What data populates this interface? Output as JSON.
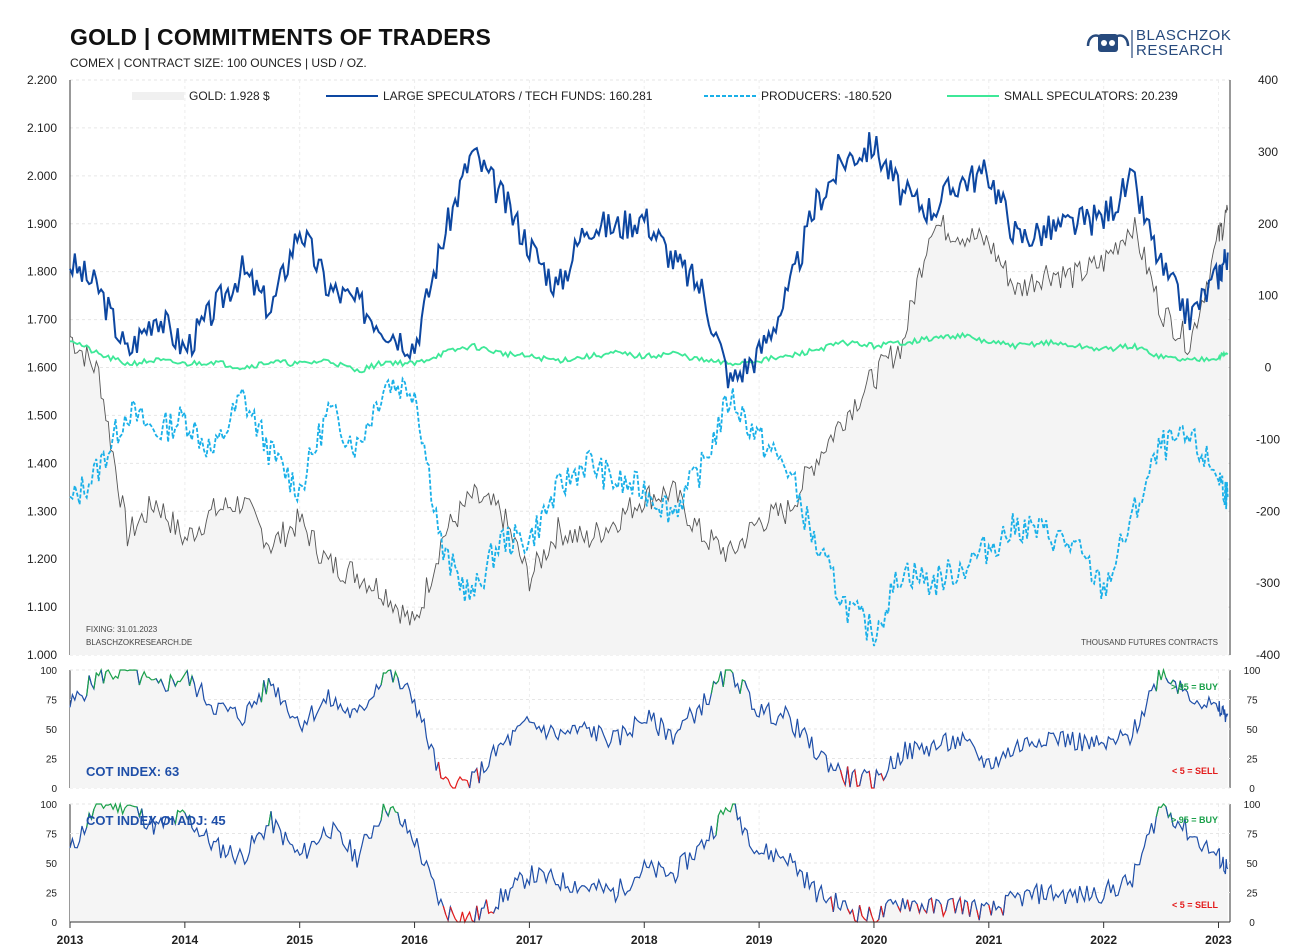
{
  "header": {
    "title": "GOLD | COMMITMENTS OF TRADERS",
    "subtitle": "COMEX | CONTRACT SIZE: 100 OUNCES | USD / OZ.",
    "logo_line1": "BLASCHZOK",
    "logo_line2": "RESEARCH"
  },
  "colors": {
    "gold": "#555555",
    "gold_fill": "#f4f4f4",
    "large_specs": "#0d47a1",
    "producers": "#1ab0e8",
    "small_specs": "#3ee898",
    "index_line": "#1f4fa8",
    "buy": "#1aa04a",
    "sell": "#e31b1b"
  },
  "chart_data": [
    {
      "type": "line",
      "panel": "main",
      "legend": [
        {
          "label": "GOLD: 1.928 $"
        },
        {
          "label": "LARGE SPECULATORS / TECH FUNDS: 160.281"
        },
        {
          "label": "PRODUCERS: -180.520"
        },
        {
          "label": "SMALL SPECULATORS: 20.239"
        }
      ],
      "left_axis": {
        "ylim": [
          1000,
          2200
        ],
        "ticks": [
          "1.000",
          "1.100",
          "1.200",
          "1.300",
          "1.400",
          "1.500",
          "1.600",
          "1.700",
          "1.800",
          "1.900",
          "2.000",
          "2.100",
          "2.200"
        ]
      },
      "right_axis": {
        "ylim": [
          -400,
          400
        ],
        "ticks": [
          "-400",
          "-300",
          "-200",
          "-100",
          "0",
          "100",
          "200",
          "300",
          "400"
        ]
      },
      "x": [
        2013.0,
        2013.25,
        2013.5,
        2013.75,
        2014.0,
        2014.25,
        2014.5,
        2014.75,
        2015.0,
        2015.25,
        2015.5,
        2015.75,
        2016.0,
        2016.25,
        2016.5,
        2016.75,
        2017.0,
        2017.25,
        2017.5,
        2017.75,
        2018.0,
        2018.25,
        2018.5,
        2018.75,
        2019.0,
        2019.25,
        2019.5,
        2019.75,
        2020.0,
        2020.25,
        2020.5,
        2020.75,
        2021.0,
        2021.25,
        2021.5,
        2021.75,
        2022.0,
        2022.25,
        2022.5,
        2022.75,
        2023.0,
        2023.08
      ],
      "series": [
        {
          "name": "GOLD",
          "axis": "left",
          "values": [
            1665,
            1590,
            1250,
            1320,
            1240,
            1300,
            1320,
            1230,
            1280,
            1190,
            1170,
            1130,
            1060,
            1250,
            1330,
            1300,
            1160,
            1260,
            1240,
            1280,
            1330,
            1340,
            1250,
            1210,
            1280,
            1300,
            1410,
            1500,
            1580,
            1650,
            1900,
            1880,
            1860,
            1760,
            1800,
            1790,
            1820,
            1900,
            1720,
            1650,
            1870,
            1928
          ]
        },
        {
          "name": "LARGE SPECULATORS / TECH FUNDS",
          "axis": "right",
          "values": [
            145,
            110,
            20,
            75,
            25,
            80,
            135,
            80,
            195,
            110,
            90,
            55,
            30,
            180,
            300,
            240,
            170,
            110,
            200,
            195,
            210,
            150,
            110,
            -20,
            20,
            100,
            230,
            290,
            310,
            240,
            220,
            260,
            270,
            180,
            190,
            200,
            210,
            260,
            140,
            70,
            130,
            160
          ]
        },
        {
          "name": "PRODUCERS",
          "axis": "right",
          "values": [
            -190,
            -140,
            -60,
            -90,
            -70,
            -120,
            -40,
            -120,
            -170,
            -60,
            -110,
            -20,
            -30,
            -260,
            -320,
            -240,
            -240,
            -170,
            -130,
            -160,
            -170,
            -200,
            -140,
            -40,
            -100,
            -140,
            -250,
            -330,
            -370,
            -280,
            -300,
            -280,
            -250,
            -220,
            -230,
            -250,
            -310,
            -210,
            -110,
            -100,
            -150,
            -180
          ]
        },
        {
          "name": "SMALL SPECULATORS",
          "axis": "right",
          "values": [
            40,
            18,
            5,
            10,
            5,
            8,
            0,
            8,
            5,
            10,
            -5,
            8,
            5,
            20,
            30,
            20,
            15,
            10,
            15,
            20,
            15,
            20,
            10,
            5,
            10,
            15,
            25,
            35,
            30,
            35,
            40,
            45,
            35,
            30,
            35,
            30,
            25,
            30,
            15,
            10,
            15,
            20
          ]
        }
      ],
      "annotations": [
        "FIXING: 31.01.2023",
        "BLASCHZOKRESEARCH.DE",
        "THOUSAND  FUTURES  CONTRACTS"
      ]
    },
    {
      "type": "line",
      "panel": "cot_index",
      "label": "COT INDEX: 63",
      "ylim": [
        0,
        100
      ],
      "ticks": [
        "0",
        "25",
        "50",
        "75",
        "100"
      ],
      "thresholds": {
        "buy_label": "> 95 = BUY",
        "sell_label": "< 5 = SELL",
        "buy": 95,
        "sell": 5
      },
      "x": [
        2013.0,
        2013.25,
        2013.5,
        2013.75,
        2014.0,
        2014.25,
        2014.5,
        2014.75,
        2015.0,
        2015.25,
        2015.5,
        2015.75,
        2016.0,
        2016.25,
        2016.5,
        2016.75,
        2017.0,
        2017.25,
        2017.5,
        2017.75,
        2018.0,
        2018.25,
        2018.5,
        2018.75,
        2019.0,
        2019.25,
        2019.5,
        2019.75,
        2020.0,
        2020.25,
        2020.5,
        2020.75,
        2021.0,
        2021.25,
        2021.5,
        2021.75,
        2022.0,
        2022.25,
        2022.5,
        2022.75,
        2023.0,
        2023.08
      ],
      "values": [
        70,
        95,
        100,
        85,
        95,
        70,
        60,
        90,
        55,
        75,
        60,
        100,
        75,
        2,
        5,
        35,
        55,
        45,
        50,
        40,
        60,
        45,
        70,
        100,
        65,
        60,
        30,
        10,
        5,
        30,
        35,
        40,
        20,
        35,
        45,
        40,
        35,
        45,
        100,
        80,
        65,
        63
      ]
    },
    {
      "type": "line",
      "panel": "cot_index_oi_adj",
      "label": "COT INDEX OI ADJ: 45",
      "ylim": [
        0,
        100
      ],
      "ticks": [
        "0",
        "25",
        "50",
        "75",
        "100"
      ],
      "thresholds": {
        "buy_label": "> 95 = BUY",
        "sell_label": "< 5 = SELL",
        "buy": 95,
        "sell": 5
      },
      "x": [
        2013.0,
        2013.25,
        2013.5,
        2013.75,
        2014.0,
        2014.25,
        2014.5,
        2014.75,
        2015.0,
        2015.25,
        2015.5,
        2015.75,
        2016.0,
        2016.25,
        2016.5,
        2016.75,
        2017.0,
        2017.25,
        2017.5,
        2017.75,
        2018.0,
        2018.25,
        2018.5,
        2018.75,
        2019.0,
        2019.25,
        2019.5,
        2019.75,
        2020.0,
        2020.25,
        2020.5,
        2020.75,
        2021.0,
        2021.25,
        2021.5,
        2021.75,
        2022.0,
        2022.25,
        2022.5,
        2022.75,
        2023.0,
        2023.08
      ],
      "values": [
        60,
        100,
        100,
        80,
        90,
        65,
        55,
        85,
        55,
        80,
        55,
        100,
        70,
        10,
        3,
        20,
        40,
        35,
        30,
        25,
        45,
        40,
        65,
        100,
        60,
        55,
        25,
        12,
        3,
        18,
        12,
        15,
        8,
        20,
        25,
        22,
        25,
        35,
        100,
        75,
        55,
        45
      ]
    }
  ],
  "x_axis_ticks": [
    "2013",
    "2014",
    "2015",
    "2016",
    "2017",
    "2018",
    "2019",
    "2020",
    "2021",
    "2022",
    "2023"
  ]
}
